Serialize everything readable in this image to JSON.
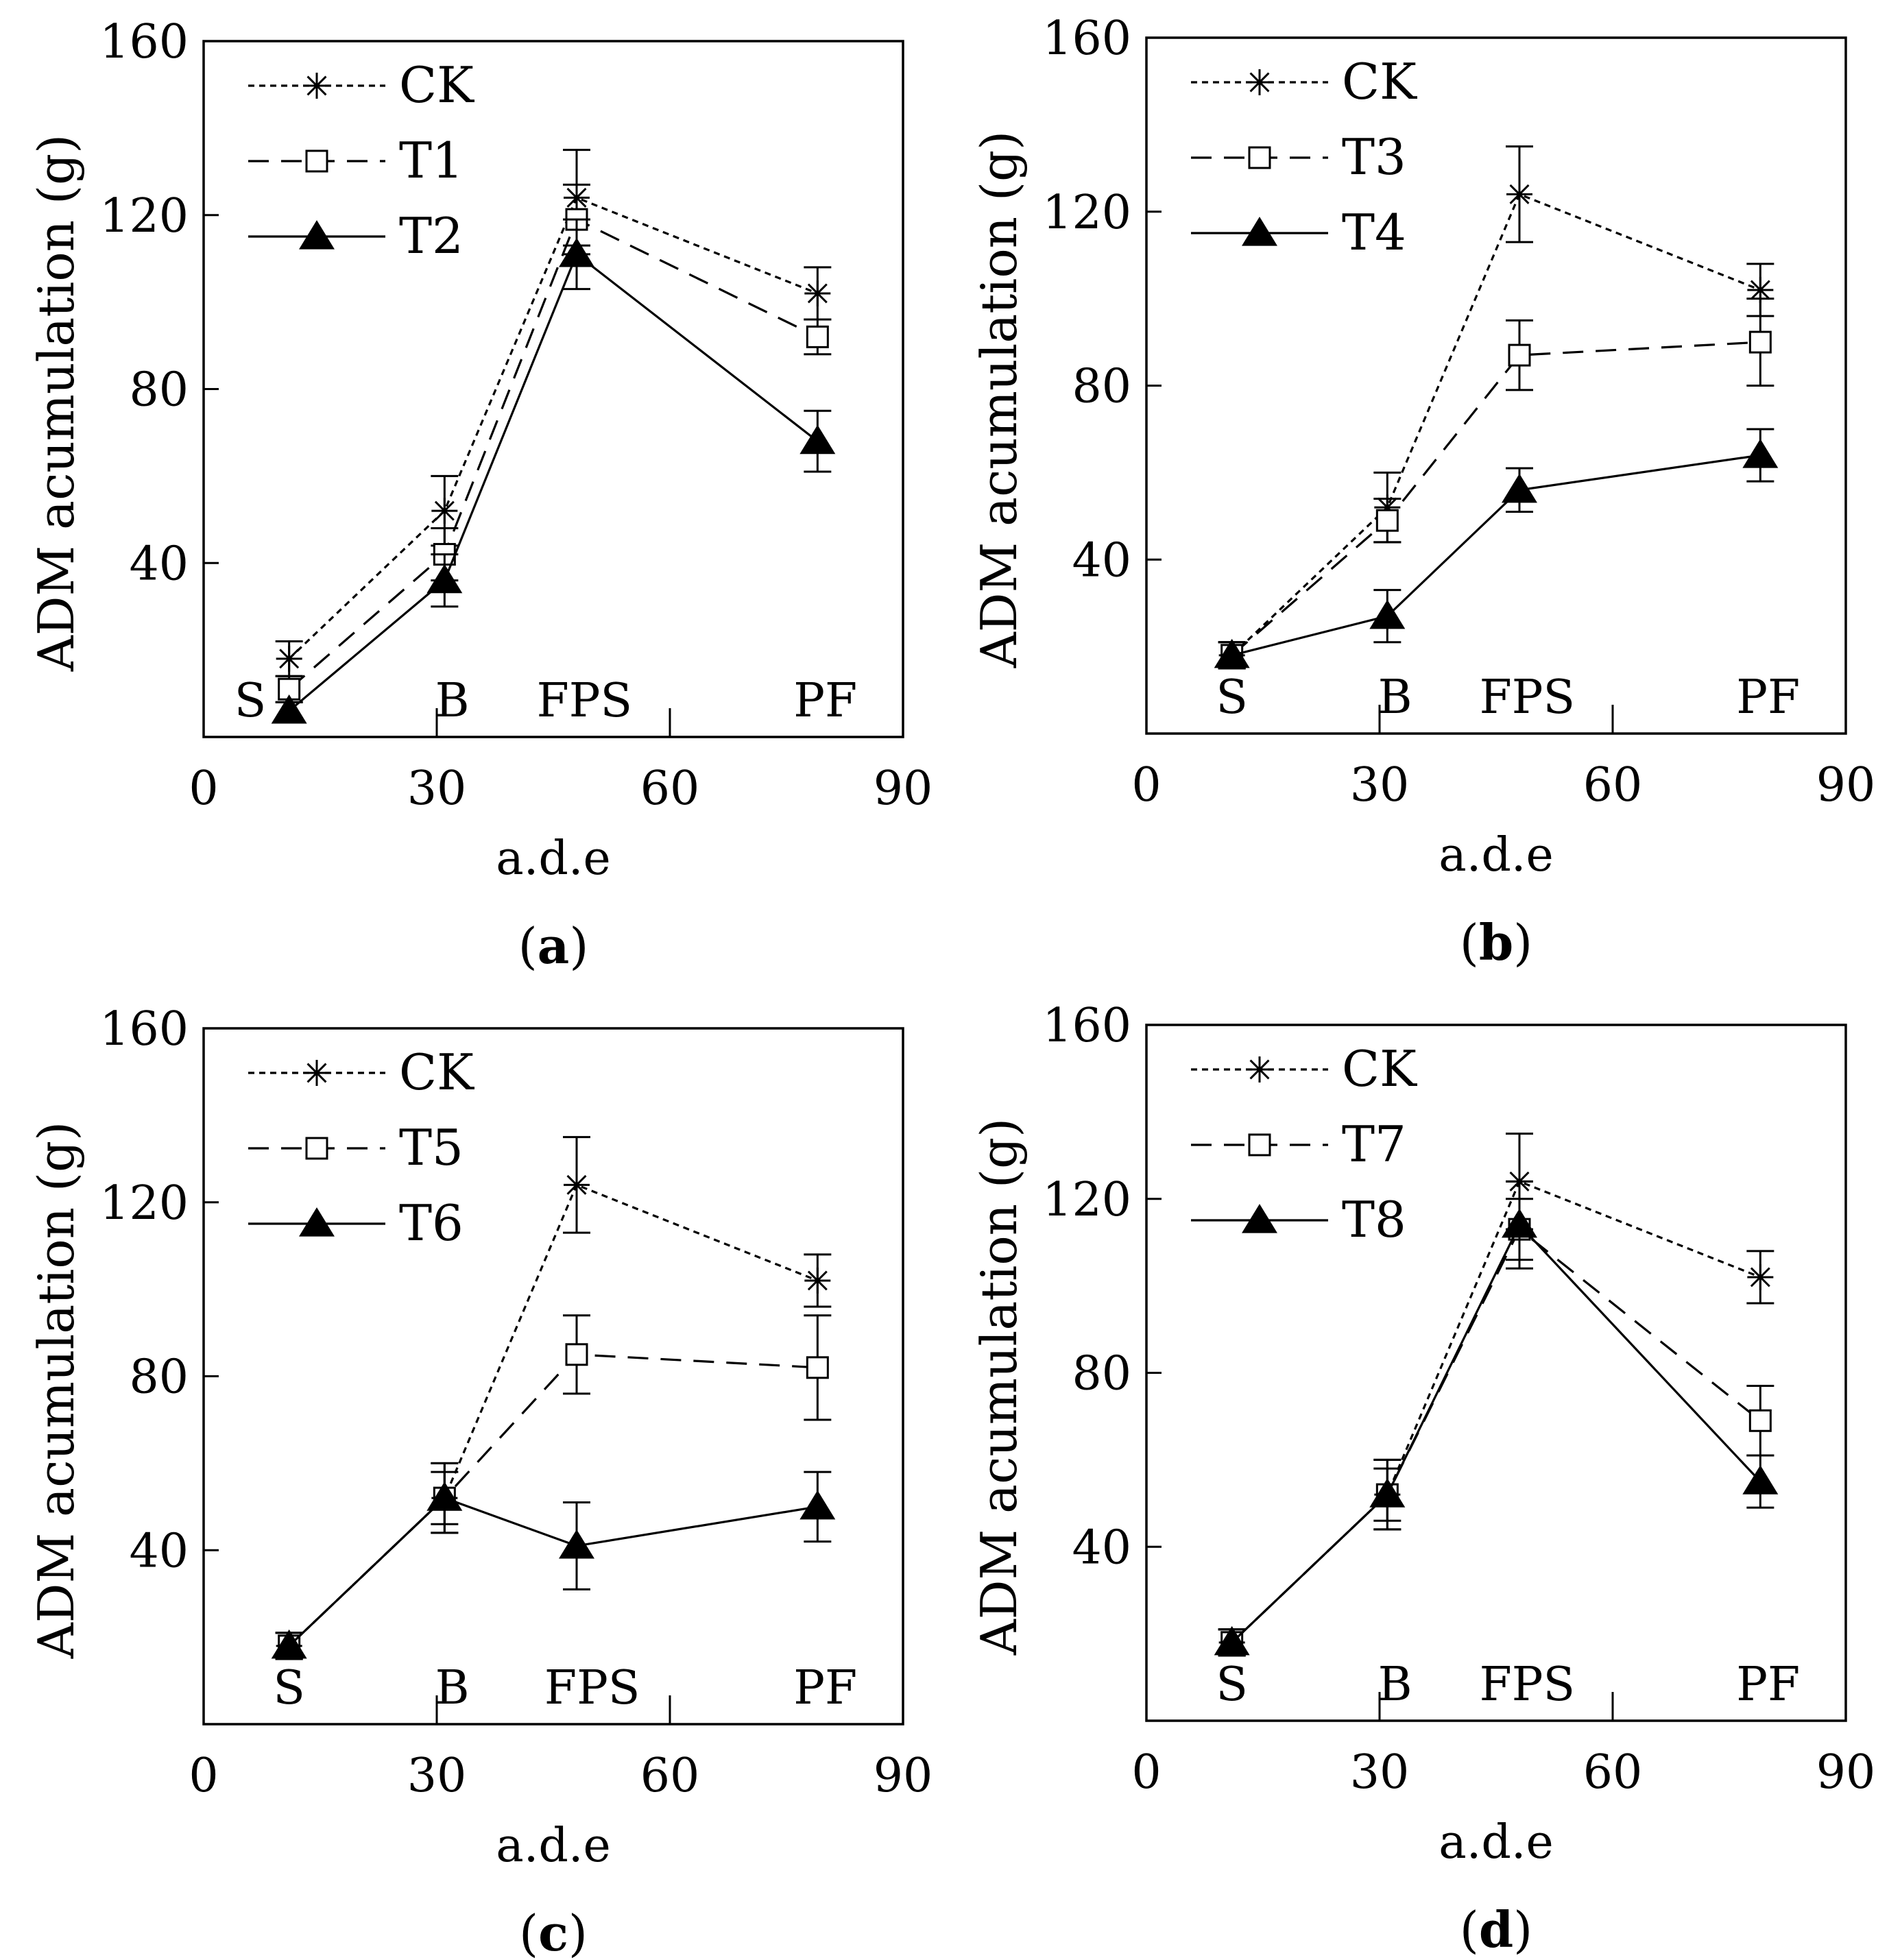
{
  "chart_data": [
    {
      "panel": "a",
      "type": "line",
      "caption": "(a)",
      "xlabel": "a.d.e",
      "ylabel": "ADM acumulation (g)",
      "xlim": [
        0,
        90
      ],
      "ylim": [
        0,
        160
      ],
      "xticks": [
        0,
        30,
        60,
        90
      ],
      "yticks": [
        40,
        80,
        120,
        160
      ],
      "stage_labels": [
        {
          "label": "S",
          "x": 6
        },
        {
          "label": "B",
          "x": 32
        },
        {
          "label": "FPS",
          "x": 49
        },
        {
          "label": "PF",
          "x": 80
        }
      ],
      "stage_ticks": [
        30,
        60
      ],
      "x": [
        11,
        31,
        48,
        79
      ],
      "series": [
        {
          "name": "CK",
          "marker": "asterisk",
          "line": "dotted",
          "values": [
            18,
            52,
            124,
            102
          ],
          "errors": [
            4,
            8,
            11,
            6
          ]
        },
        {
          "name": "T1",
          "marker": "square",
          "line": "dashed",
          "values": [
            11,
            42,
            119,
            92
          ],
          "errors": [
            3,
            6,
            8,
            4
          ]
        },
        {
          "name": "T2",
          "marker": "triangle",
          "line": "solid",
          "values": [
            6,
            36,
            111,
            68
          ],
          "errors": [
            2,
            6,
            8,
            7
          ]
        }
      ]
    },
    {
      "panel": "b",
      "type": "line",
      "caption": "(b)",
      "xlabel": "a.d.e",
      "ylabel": "ADM acumulation (g)",
      "xlim": [
        0,
        90
      ],
      "ylim": [
        0,
        160
      ],
      "xticks": [
        0,
        30,
        60,
        90
      ],
      "yticks": [
        40,
        80,
        120,
        160
      ],
      "stage_labels": [
        {
          "label": "S",
          "x": 11
        },
        {
          "label": "B",
          "x": 32
        },
        {
          "label": "FPS",
          "x": 49
        },
        {
          "label": "PF",
          "x": 80
        }
      ],
      "stage_ticks": [
        30,
        60
      ],
      "x": [
        11,
        31,
        48,
        79
      ],
      "series": [
        {
          "name": "CK",
          "marker": "asterisk",
          "line": "dotted",
          "values": [
            18,
            52,
            124,
            102
          ],
          "errors": [
            3,
            8,
            11,
            6
          ]
        },
        {
          "name": "T3",
          "marker": "square",
          "line": "dashed",
          "values": [
            18,
            49,
            87,
            90
          ],
          "errors": [
            3,
            5,
            8,
            10
          ]
        },
        {
          "name": "T4",
          "marker": "triangle",
          "line": "solid",
          "values": [
            18,
            27,
            56,
            64
          ],
          "errors": [
            3,
            6,
            5,
            6
          ]
        }
      ]
    },
    {
      "panel": "c",
      "type": "line",
      "caption": "(c)",
      "xlabel": "a.d.e",
      "ylabel": "ADM acumulation (g)",
      "xlim": [
        0,
        90
      ],
      "ylim": [
        0,
        160
      ],
      "xticks": [
        0,
        30,
        60,
        90
      ],
      "yticks": [
        40,
        80,
        120,
        160
      ],
      "stage_labels": [
        {
          "label": "S",
          "x": 11
        },
        {
          "label": "B",
          "x": 32
        },
        {
          "label": "FPS",
          "x": 50
        },
        {
          "label": "PF",
          "x": 80
        }
      ],
      "stage_ticks": [
        30,
        60
      ],
      "x": [
        11,
        31,
        48,
        79
      ],
      "series": [
        {
          "name": "CK",
          "marker": "asterisk",
          "line": "dotted",
          "values": [
            18,
            52,
            124,
            102
          ],
          "errors": [
            3,
            8,
            11,
            6
          ]
        },
        {
          "name": "T5",
          "marker": "square",
          "line": "dashed",
          "values": [
            18,
            52,
            85,
            82
          ],
          "errors": [
            3,
            6,
            9,
            12
          ]
        },
        {
          "name": "T6",
          "marker": "triangle",
          "line": "solid",
          "values": [
            18,
            52,
            41,
            50
          ],
          "errors": [
            3,
            8,
            10,
            8
          ]
        }
      ]
    },
    {
      "panel": "d",
      "type": "line",
      "caption": "(d)",
      "xlabel": "a.d.e",
      "ylabel": "ADM acumulation (g)",
      "xlim": [
        0,
        90
      ],
      "ylim": [
        0,
        160
      ],
      "xticks": [
        0,
        30,
        60,
        90
      ],
      "yticks": [
        40,
        80,
        120,
        160
      ],
      "stage_labels": [
        {
          "label": "S",
          "x": 11
        },
        {
          "label": "B",
          "x": 32
        },
        {
          "label": "FPS",
          "x": 49
        },
        {
          "label": "PF",
          "x": 80
        }
      ],
      "stage_ticks": [
        30,
        60
      ],
      "x": [
        11,
        31,
        48,
        79
      ],
      "series": [
        {
          "name": "CK",
          "marker": "asterisk",
          "line": "dotted",
          "values": [
            18,
            52,
            124,
            102
          ],
          "errors": [
            3,
            8,
            11,
            6
          ]
        },
        {
          "name": "T7",
          "marker": "square",
          "line": "dashed",
          "values": [
            18,
            52,
            113,
            69
          ],
          "errors": [
            3,
            6,
            7,
            8
          ]
        },
        {
          "name": "T8",
          "marker": "triangle",
          "line": "solid",
          "values": [
            18,
            52,
            114,
            55
          ],
          "errors": [
            3,
            8,
            10,
            6
          ]
        }
      ]
    }
  ]
}
